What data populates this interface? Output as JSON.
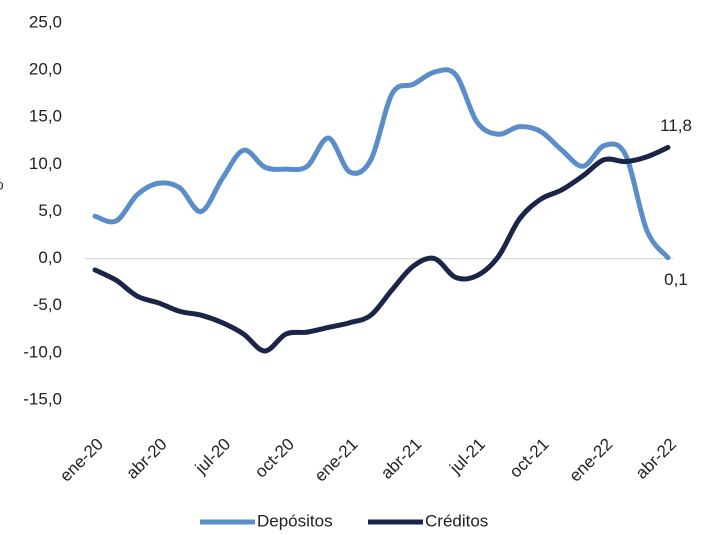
{
  "chart_data": {
    "type": "line",
    "ylabel": "%",
    "categories": [
      "ene-20",
      null,
      null,
      "abr-20",
      null,
      null,
      "jul-20",
      null,
      null,
      "oct-20",
      null,
      null,
      "ene-21",
      null,
      null,
      "abr-21",
      null,
      null,
      "jul-21",
      null,
      null,
      "oct-21",
      null,
      null,
      "ene-22",
      null,
      null,
      "abr-22"
    ],
    "series": [
      {
        "name": "Depósitos",
        "color": "#5b8ec9",
        "values": [
          4.5,
          4.0,
          6.8,
          8.0,
          7.5,
          5.0,
          8.5,
          11.5,
          9.7,
          9.5,
          9.8,
          12.8,
          9.2,
          10.5,
          17.5,
          18.5,
          19.8,
          19.5,
          14.5,
          13.2,
          14.0,
          13.5,
          11.5,
          9.8,
          12.0,
          11.0,
          3.0,
          0.1
        ],
        "value_labels": [
          null,
          null,
          null,
          null,
          null,
          null,
          null,
          null,
          null,
          null,
          null,
          null,
          null,
          null,
          null,
          null,
          null,
          null,
          null,
          null,
          null,
          null,
          null,
          null,
          null,
          null,
          null,
          "0,1"
        ]
      },
      {
        "name": "Créditos",
        "color": "#1b2547",
        "values": [
          -1.2,
          -2.3,
          -4.0,
          -4.7,
          -5.6,
          -6.0,
          -6.8,
          -8.0,
          -9.8,
          -8.0,
          -7.8,
          -7.3,
          -6.8,
          -6.0,
          -3.3,
          -0.8,
          0.0,
          -2.0,
          -1.8,
          0.2,
          4.2,
          6.3,
          7.3,
          8.8,
          10.5,
          10.3,
          10.8,
          11.8
        ],
        "value_labels": [
          null,
          null,
          null,
          null,
          null,
          null,
          null,
          null,
          null,
          null,
          null,
          null,
          null,
          null,
          null,
          null,
          null,
          null,
          null,
          null,
          null,
          null,
          null,
          null,
          null,
          null,
          null,
          "11,8"
        ]
      }
    ],
    "ylim": [
      -15,
      25
    ],
    "yticks": [
      {
        "value": -15,
        "label": "-15,0"
      },
      {
        "value": -10,
        "label": "-10,0"
      },
      {
        "value": -5,
        "label": "-5,0"
      },
      {
        "value": 0,
        "label": "0,0"
      },
      {
        "value": 5,
        "label": "5,0"
      },
      {
        "value": 10,
        "label": "10,0"
      },
      {
        "value": 15,
        "label": "15,0"
      },
      {
        "value": 20,
        "label": "20,0"
      },
      {
        "value": 25,
        "label": "25,0"
      }
    ],
    "grid": false,
    "legend": "bottom"
  }
}
